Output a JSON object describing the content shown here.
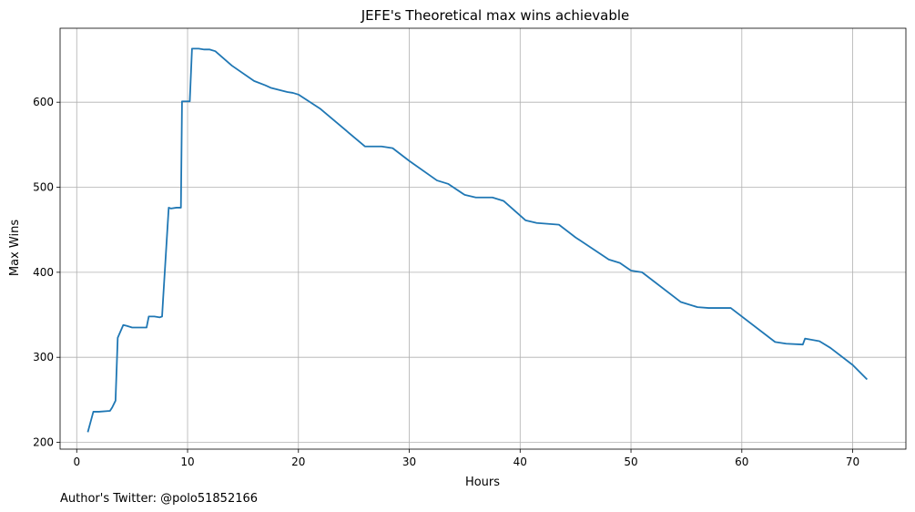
{
  "chart_data": {
    "type": "line",
    "title": "JEFE's Theoretical max wins achievable",
    "xlabel": "Hours",
    "ylabel": "Max Wins",
    "xlim": [
      -1.5,
      74.8
    ],
    "ylim": [
      192,
      687
    ],
    "xticks": [
      0,
      10,
      20,
      30,
      40,
      50,
      60,
      70
    ],
    "yticks": [
      200,
      300,
      400,
      500,
      600
    ],
    "grid": true,
    "line_color": "#1f77b4",
    "grid_color": "#b0b0b0",
    "series": [
      {
        "name": "",
        "x": [
          1.0,
          1.5,
          2.0,
          3.0,
          3.2,
          3.5,
          3.7,
          4.2,
          4.5,
          5.0,
          5.5,
          6.3,
          6.5,
          7.0,
          7.5,
          7.7,
          7.8,
          8.3,
          8.5,
          9.0,
          9.4,
          9.5,
          9.7,
          10.2,
          10.4,
          11.0,
          11.5,
          12.0,
          12.5,
          14.0,
          16.0,
          17.0,
          17.5,
          19.0,
          19.5,
          20.0,
          22.0,
          26.0,
          27.5,
          28.5,
          30.0,
          32.5,
          33.5,
          35.0,
          36.0,
          37.5,
          38.5,
          40.5,
          41.5,
          43.5,
          45.0,
          48.0,
          49.0,
          50.0,
          51.0,
          54.5,
          56.0,
          57.0,
          59.0,
          63.0,
          64.0,
          65.5,
          65.7,
          67.0,
          68.0,
          70.0,
          71.3
        ],
        "y": [
          212,
          236,
          236,
          237,
          241,
          249,
          323,
          338,
          337,
          335,
          335,
          335,
          348,
          348,
          347,
          348,
          370,
          476,
          475,
          476,
          476,
          601,
          601,
          601,
          663,
          663,
          662,
          662,
          660,
          643,
          625,
          620,
          617,
          612,
          611,
          609,
          592,
          548,
          548,
          546,
          531,
          508,
          504,
          491,
          488,
          488,
          484,
          461,
          458,
          456,
          441,
          415,
          411,
          402,
          400,
          365,
          359,
          358,
          358,
          318,
          316,
          315,
          322,
          319,
          311,
          291,
          274
        ]
      }
    ]
  },
  "footer": {
    "note": "Author's Twitter: @polo51852166"
  }
}
